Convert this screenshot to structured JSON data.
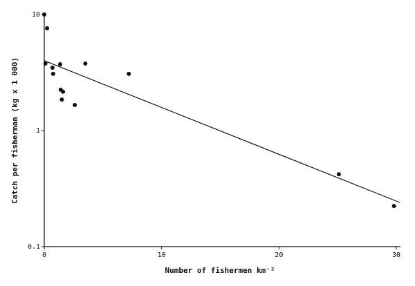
{
  "chart_data": {
    "type": "scatter",
    "x_label": "Number of fishermen km⁻²",
    "y_label": "Catch per fisherman (kg x 1 000)",
    "log_y": true,
    "grid": false,
    "color": "#111111",
    "xlim": [
      0,
      30
    ],
    "ylim": [
      0.1,
      10
    ],
    "xticks": [
      0,
      10,
      20,
      30
    ],
    "yticks": [
      0.1,
      1,
      10
    ],
    "series": [
      {
        "color": "#111111",
        "style": "points",
        "x": [
          0,
          0.24,
          0.1,
          0.7,
          0.76,
          1.35,
          1.4,
          1.6,
          1.5,
          2.6,
          3.5,
          7.2,
          25.1,
          29.8
        ],
        "values": [
          10,
          7.6,
          3.78,
          3.48,
          3.08,
          3.73,
          2.25,
          2.16,
          1.85,
          1.66,
          3.78,
          3.08,
          0.42,
          0.224
        ]
      },
      {
        "color": "#111111",
        "style": "line",
        "x": [
          0,
          30.3
        ],
        "values": [
          4.0,
          0.24
        ]
      }
    ]
  }
}
